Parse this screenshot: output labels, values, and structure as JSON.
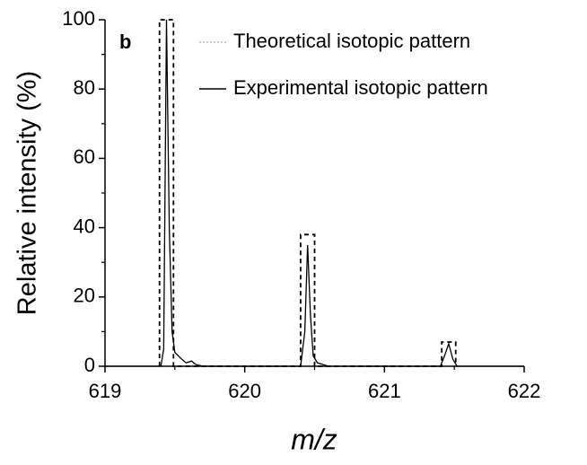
{
  "chart_data": {
    "type": "line",
    "panel_label": "b",
    "xlabel": "m/z",
    "ylabel": "Relative intensity (%)",
    "xlim": [
      619,
      622
    ],
    "xticks": [
      619,
      620,
      621,
      622
    ],
    "xminorticks": [
      619.5,
      620.5,
      621.5
    ],
    "ylim": [
      0,
      100
    ],
    "yticks": [
      0,
      20,
      40,
      60,
      80,
      100
    ],
    "yminorticks": [
      10,
      30,
      50,
      70,
      90
    ],
    "legend": "upper right",
    "series": [
      {
        "name": "Theoretical isotopic pattern",
        "color": "#000000",
        "style": "dashed",
        "x": [
          619.39,
          619.39,
          619.49,
          619.49,
          620.4,
          620.4,
          620.5,
          620.5,
          621.41,
          621.41,
          621.51,
          621.51
        ],
        "values": [
          0,
          100,
          100,
          0,
          0,
          38,
          38,
          0,
          0,
          7,
          7,
          0
        ]
      },
      {
        "name": "Experimental isotopic pattern",
        "color": "#000000",
        "style": "solid",
        "x": [
          619,
          619.4,
          619.42,
          619.44,
          619.46,
          619.48,
          619.5,
          619.55,
          619.58,
          619.62,
          619.65,
          619.7,
          620.4,
          620.43,
          620.45,
          620.47,
          620.49,
          620.52,
          620.6,
          621.4,
          621.43,
          621.46,
          621.49,
          621.52,
          622
        ],
        "values": [
          0,
          0,
          5,
          100,
          40,
          10,
          4,
          2,
          1,
          1.5,
          0.5,
          0,
          0,
          10,
          35,
          15,
          3,
          1,
          0,
          0,
          3,
          6.5,
          2,
          0,
          0
        ]
      }
    ]
  }
}
